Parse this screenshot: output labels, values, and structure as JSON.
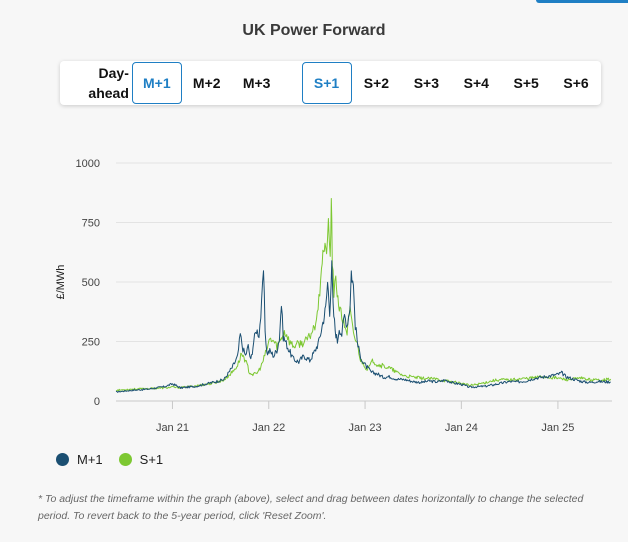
{
  "title": "UK Power Forward",
  "tabs": [
    {
      "label_line1": "Day-",
      "label_line2": "ahead",
      "active": false
    },
    {
      "label": "M+1",
      "active": true
    },
    {
      "label": "M+2",
      "active": false
    },
    {
      "label": "M+3",
      "active": false
    },
    {
      "label": "S+1",
      "active": true
    },
    {
      "label": "S+2",
      "active": false
    },
    {
      "label": "S+3",
      "active": false
    },
    {
      "label": "S+4",
      "active": false
    },
    {
      "label": "S+5",
      "active": false
    },
    {
      "label": "S+6",
      "active": false
    }
  ],
  "colors": {
    "m1": "#1b4f72",
    "s1": "#7dc832",
    "accent": "#1f7fc4"
  },
  "chart_data": {
    "type": "line",
    "title": "",
    "ylabel": "£/MWh",
    "xlabel": "",
    "ylim": [
      0,
      1000
    ],
    "yticks": [
      "0",
      "250",
      "500",
      "750",
      "1000"
    ],
    "ytick_values": [
      0,
      250,
      500,
      750,
      1000
    ],
    "xlim": [
      "2020-06-01",
      "2025-07-25"
    ],
    "xtick_labels": [
      "Jan 21",
      "Jan 22",
      "Jan 23",
      "Jan 24",
      "Jan 25"
    ],
    "xtick_dates": [
      "2021-01-01",
      "2022-01-01",
      "2023-01-01",
      "2024-01-01",
      "2025-01-01"
    ],
    "grid": true,
    "legend": "bottom-left",
    "series": [
      {
        "name": "M+1",
        "points": [
          [
            "2020-06-01",
            38
          ],
          [
            "2020-08-01",
            45
          ],
          [
            "2020-10-01",
            50
          ],
          [
            "2020-12-01",
            60
          ],
          [
            "2021-01-01",
            72
          ],
          [
            "2021-01-15",
            65
          ],
          [
            "2021-02-01",
            55
          ],
          [
            "2021-04-01",
            62
          ],
          [
            "2021-06-01",
            78
          ],
          [
            "2021-07-15",
            90
          ],
          [
            "2021-08-15",
            140
          ],
          [
            "2021-09-05",
            185
          ],
          [
            "2021-09-15",
            280
          ],
          [
            "2021-09-25",
            220
          ],
          [
            "2021-10-05",
            190
          ],
          [
            "2021-10-15",
            230
          ],
          [
            "2021-10-25",
            170
          ],
          [
            "2021-11-05",
            250
          ],
          [
            "2021-11-15",
            300
          ],
          [
            "2021-11-25",
            280
          ],
          [
            "2021-12-05",
            400
          ],
          [
            "2021-12-12",
            550
          ],
          [
            "2021-12-18",
            300
          ],
          [
            "2021-12-25",
            200
          ],
          [
            "2022-01-05",
            210
          ],
          [
            "2022-01-20",
            190
          ],
          [
            "2022-02-01",
            215
          ],
          [
            "2022-02-10",
            260
          ],
          [
            "2022-02-18",
            410
          ],
          [
            "2022-02-25",
            270
          ],
          [
            "2022-03-05",
            250
          ],
          [
            "2022-03-20",
            210
          ],
          [
            "2022-04-05",
            175
          ],
          [
            "2022-04-25",
            165
          ],
          [
            "2022-05-15",
            190
          ],
          [
            "2022-06-05",
            170
          ],
          [
            "2022-06-25",
            210
          ],
          [
            "2022-07-10",
            250
          ],
          [
            "2022-07-25",
            330
          ],
          [
            "2022-08-05",
            390
          ],
          [
            "2022-08-12",
            500
          ],
          [
            "2022-08-20",
            380
          ],
          [
            "2022-08-28",
            560
          ],
          [
            "2022-09-02",
            390
          ],
          [
            "2022-09-10",
            300
          ],
          [
            "2022-09-18",
            250
          ],
          [
            "2022-09-25",
            310
          ],
          [
            "2022-10-05",
            280
          ],
          [
            "2022-10-15",
            360
          ],
          [
            "2022-10-25",
            320
          ],
          [
            "2022-11-05",
            400
          ],
          [
            "2022-11-10",
            545
          ],
          [
            "2022-11-18",
            480
          ],
          [
            "2022-11-25",
            320
          ],
          [
            "2022-12-05",
            230
          ],
          [
            "2022-12-15",
            190
          ],
          [
            "2022-12-25",
            160
          ],
          [
            "2023-01-10",
            140
          ],
          [
            "2023-01-25",
            120
          ],
          [
            "2023-02-15",
            115
          ],
          [
            "2023-03-10",
            100
          ],
          [
            "2023-04-05",
            102
          ],
          [
            "2023-05-01",
            92
          ],
          [
            "2023-06-01",
            90
          ],
          [
            "2023-07-01",
            82
          ],
          [
            "2023-08-01",
            78
          ],
          [
            "2023-09-01",
            84
          ],
          [
            "2023-10-01",
            80
          ],
          [
            "2023-11-01",
            88
          ],
          [
            "2023-12-01",
            76
          ],
          [
            "2024-01-01",
            70
          ],
          [
            "2024-02-01",
            58
          ],
          [
            "2024-03-01",
            60
          ],
          [
            "2024-04-01",
            62
          ],
          [
            "2024-05-01",
            68
          ],
          [
            "2024-06-01",
            75
          ],
          [
            "2024-07-01",
            82
          ],
          [
            "2024-08-01",
            80
          ],
          [
            "2024-09-01",
            84
          ],
          [
            "2024-10-01",
            95
          ],
          [
            "2024-11-01",
            100
          ],
          [
            "2024-12-01",
            105
          ],
          [
            "2025-01-01",
            112
          ],
          [
            "2025-01-15",
            118
          ],
          [
            "2025-02-01",
            102
          ],
          [
            "2025-03-01",
            92
          ],
          [
            "2025-04-01",
            82
          ],
          [
            "2025-05-01",
            78
          ],
          [
            "2025-06-01",
            82
          ],
          [
            "2025-07-20",
            80
          ]
        ]
      },
      {
        "name": "S+1",
        "points": [
          [
            "2020-06-01",
            45
          ],
          [
            "2020-08-01",
            50
          ],
          [
            "2020-10-01",
            52
          ],
          [
            "2020-12-01",
            55
          ],
          [
            "2021-01-01",
            58
          ],
          [
            "2021-02-01",
            56
          ],
          [
            "2021-04-01",
            64
          ],
          [
            "2021-06-01",
            74
          ],
          [
            "2021-07-15",
            88
          ],
          [
            "2021-08-15",
            120
          ],
          [
            "2021-09-05",
            150
          ],
          [
            "2021-09-20",
            200
          ],
          [
            "2021-10-05",
            170
          ],
          [
            "2021-10-20",
            120
          ],
          [
            "2021-11-05",
            110
          ],
          [
            "2021-11-20",
            120
          ],
          [
            "2021-12-05",
            150
          ],
          [
            "2021-12-20",
            200
          ],
          [
            "2022-01-05",
            260
          ],
          [
            "2022-01-20",
            250
          ],
          [
            "2022-02-01",
            230
          ],
          [
            "2022-02-15",
            260
          ],
          [
            "2022-03-01",
            290
          ],
          [
            "2022-03-10",
            280
          ],
          [
            "2022-03-20",
            250
          ],
          [
            "2022-04-05",
            230
          ],
          [
            "2022-04-25",
            240
          ],
          [
            "2022-05-15",
            245
          ],
          [
            "2022-06-05",
            270
          ],
          [
            "2022-06-25",
            320
          ],
          [
            "2022-07-10",
            420
          ],
          [
            "2022-07-20",
            580
          ],
          [
            "2022-07-28",
            640
          ],
          [
            "2022-08-05",
            620
          ],
          [
            "2022-08-15",
            720
          ],
          [
            "2022-08-22",
            600
          ],
          [
            "2022-08-26",
            855
          ],
          [
            "2022-08-30",
            600
          ],
          [
            "2022-09-05",
            430
          ],
          [
            "2022-09-12",
            520
          ],
          [
            "2022-09-20",
            430
          ],
          [
            "2022-09-28",
            380
          ],
          [
            "2022-10-05",
            350
          ],
          [
            "2022-10-15",
            320
          ],
          [
            "2022-10-25",
            290
          ],
          [
            "2022-11-05",
            380
          ],
          [
            "2022-11-15",
            300
          ],
          [
            "2022-11-25",
            260
          ],
          [
            "2022-12-05",
            230
          ],
          [
            "2022-12-15",
            170
          ],
          [
            "2022-12-25",
            160
          ],
          [
            "2023-01-10",
            130
          ],
          [
            "2023-01-20",
            150
          ],
          [
            "2023-02-01",
            170
          ],
          [
            "2023-02-15",
            155
          ],
          [
            "2023-03-01",
            150
          ],
          [
            "2023-04-01",
            140
          ],
          [
            "2023-05-01",
            120
          ],
          [
            "2023-06-01",
            105
          ],
          [
            "2023-07-01",
            100
          ],
          [
            "2023-08-01",
            96
          ],
          [
            "2023-09-01",
            94
          ],
          [
            "2023-10-01",
            92
          ],
          [
            "2023-11-01",
            85
          ],
          [
            "2023-12-01",
            80
          ],
          [
            "2024-01-01",
            75
          ],
          [
            "2024-02-01",
            65
          ],
          [
            "2024-03-01",
            70
          ],
          [
            "2024-04-01",
            78
          ],
          [
            "2024-05-01",
            86
          ],
          [
            "2024-06-01",
            90
          ],
          [
            "2024-07-01",
            88
          ],
          [
            "2024-08-01",
            92
          ],
          [
            "2024-09-01",
            95
          ],
          [
            "2024-10-01",
            98
          ],
          [
            "2024-11-01",
            102
          ],
          [
            "2024-12-01",
            100
          ],
          [
            "2025-01-01",
            96
          ],
          [
            "2025-02-01",
            90
          ],
          [
            "2025-03-01",
            92
          ],
          [
            "2025-04-01",
            95
          ],
          [
            "2025-05-01",
            90
          ],
          [
            "2025-06-01",
            88
          ],
          [
            "2025-07-20",
            92
          ]
        ]
      }
    ]
  },
  "legend": {
    "m1_label": "M+1",
    "s1_label": "S+1"
  },
  "footnote": "* To adjust the timeframe within the graph (above), select and drag between dates horizontally to change the selected period. To revert back to the 5-year period, click 'Reset Zoom'."
}
